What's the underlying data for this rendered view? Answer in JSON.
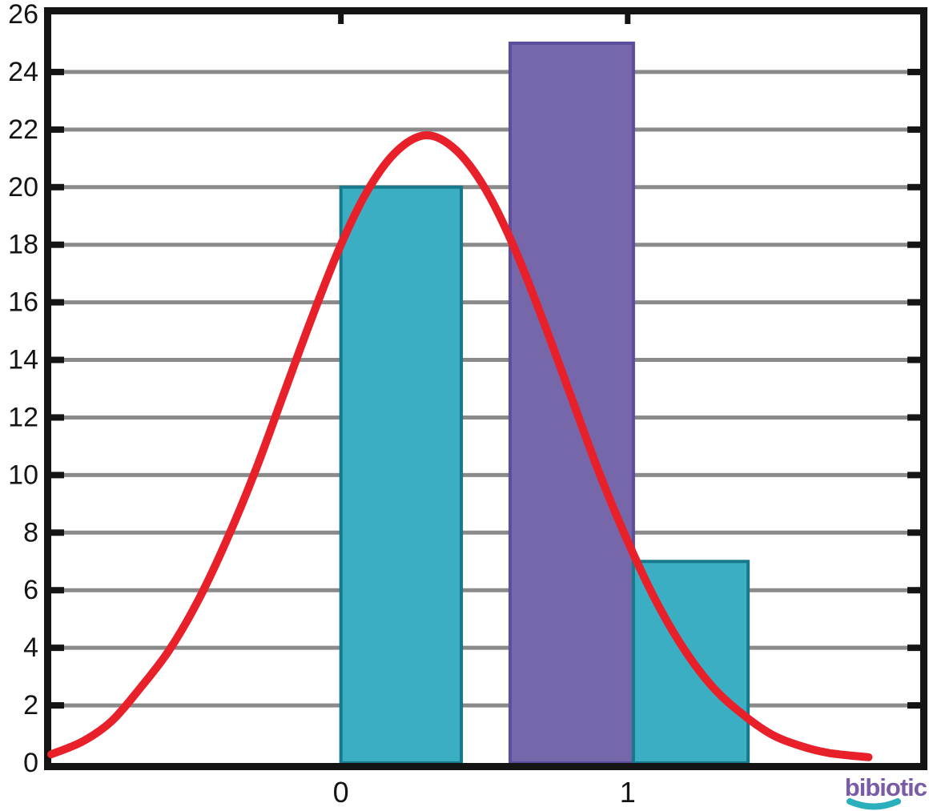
{
  "logo": {
    "text": "bibiotic",
    "color": "#7a5ba8",
    "smile_color": "#29b0bc"
  },
  "chart_data": {
    "type": "bar",
    "title": "",
    "xlabel": "",
    "ylabel": "",
    "xlim": [
      -1.01,
      2.02
    ],
    "ylim": [
      0,
      26
    ],
    "x_ticks": [
      0,
      1
    ],
    "y_ticks": [
      0,
      2,
      4,
      6,
      8,
      10,
      12,
      14,
      16,
      18,
      20,
      22,
      24,
      26
    ],
    "grid": "horizontal",
    "legend": "none",
    "axis_color": "#141414",
    "grid_color": "#8a8a8a",
    "bars": [
      {
        "name": "bar-bin-0",
        "x0": 0.0,
        "x1": 0.42,
        "value": 20,
        "fill": "#3baec3",
        "stroke": "#17798c"
      },
      {
        "name": "bar-bin-1",
        "x0": 0.59,
        "x1": 1.02,
        "value": 25,
        "fill": "#7667ab",
        "stroke": "#5c4e9c"
      },
      {
        "name": "bar-bin-1b",
        "x0": 1.02,
        "x1": 1.42,
        "value": 7,
        "fill": "#3baec3",
        "stroke": "#17798c"
      }
    ],
    "curve": {
      "name": "distribution-fit-curve",
      "color": "#e8202a",
      "stroke_width": 10,
      "peak": {
        "x": 0.3,
        "y": 21.8
      },
      "points": [
        [
          -1.01,
          0.3
        ],
        [
          -0.9,
          0.75
        ],
        [
          -0.8,
          1.45
        ],
        [
          -0.7,
          2.6
        ],
        [
          -0.6,
          3.9
        ],
        [
          -0.5,
          5.6
        ],
        [
          -0.4,
          7.7
        ],
        [
          -0.3,
          10.1
        ],
        [
          -0.2,
          12.8
        ],
        [
          -0.1,
          15.5
        ],
        [
          0.0,
          18.0
        ],
        [
          0.1,
          20.0
        ],
        [
          0.2,
          21.3
        ],
        [
          0.3,
          21.8
        ],
        [
          0.4,
          21.3
        ],
        [
          0.5,
          20.0
        ],
        [
          0.6,
          18.0
        ],
        [
          0.7,
          15.5
        ],
        [
          0.8,
          12.8
        ],
        [
          0.9,
          10.1
        ],
        [
          1.0,
          7.7
        ],
        [
          1.1,
          5.6
        ],
        [
          1.2,
          3.9
        ],
        [
          1.3,
          2.6
        ],
        [
          1.4,
          1.7
        ],
        [
          1.5,
          1.0
        ],
        [
          1.6,
          0.6
        ],
        [
          1.7,
          0.35
        ],
        [
          1.84,
          0.2
        ]
      ]
    }
  }
}
